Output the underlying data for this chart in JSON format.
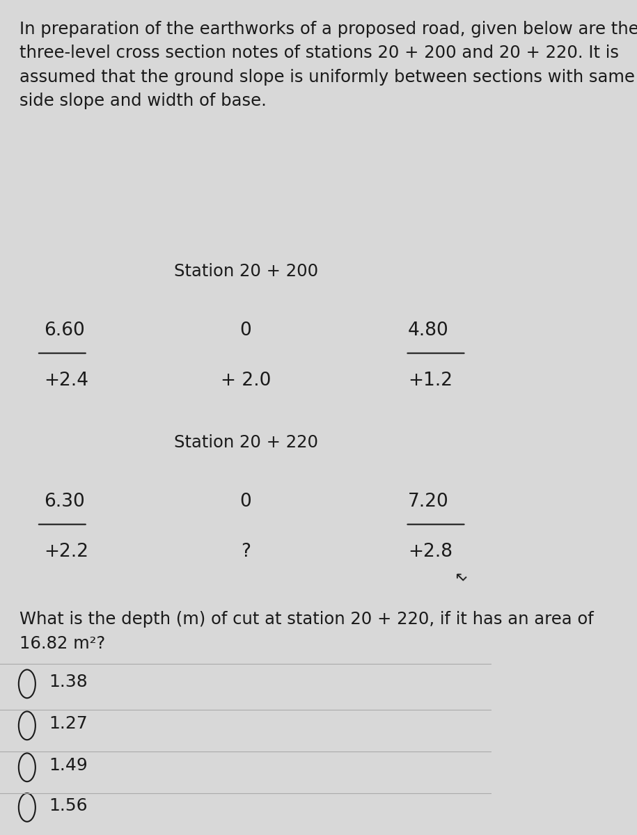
{
  "bg_color": "#d8d8d8",
  "text_color": "#1a1a1a",
  "paragraph": "In preparation of the earthworks of a proposed road, given below are the\nthree-level cross section notes of stations 20 + 200 and 20 + 220. It is\nassumed that the ground slope is uniformly between sections with same\nside slope and width of base.",
  "station1_label": "Station 20 + 200",
  "station1_top_left": "6.60",
  "station1_top_center": "0",
  "station1_top_right": "4.80",
  "station1_bot_left": "+2.4",
  "station1_bot_center": "+ 2.0",
  "station1_bot_right": "+1.2",
  "station2_label": "Station 20 + 220",
  "station2_top_left": "6.30",
  "station2_top_center": "0",
  "station2_top_right": "7.20",
  "station2_bot_left": "+2.2",
  "station2_bot_center": "?",
  "station2_bot_right": "+2.8",
  "question": "What is the depth (m) of cut at station 20 + 220, if it has an area of\n16.82 m²?",
  "choices": [
    "1.38",
    "1.27",
    "1.49",
    "1.56"
  ],
  "font_size_paragraph": 17.5,
  "font_size_station_label": 17.5,
  "font_size_table": 19,
  "font_size_question": 17.5,
  "font_size_choices": 18,
  "underline_color": "#1a1a1a",
  "separator_color": "#aaaaaa"
}
